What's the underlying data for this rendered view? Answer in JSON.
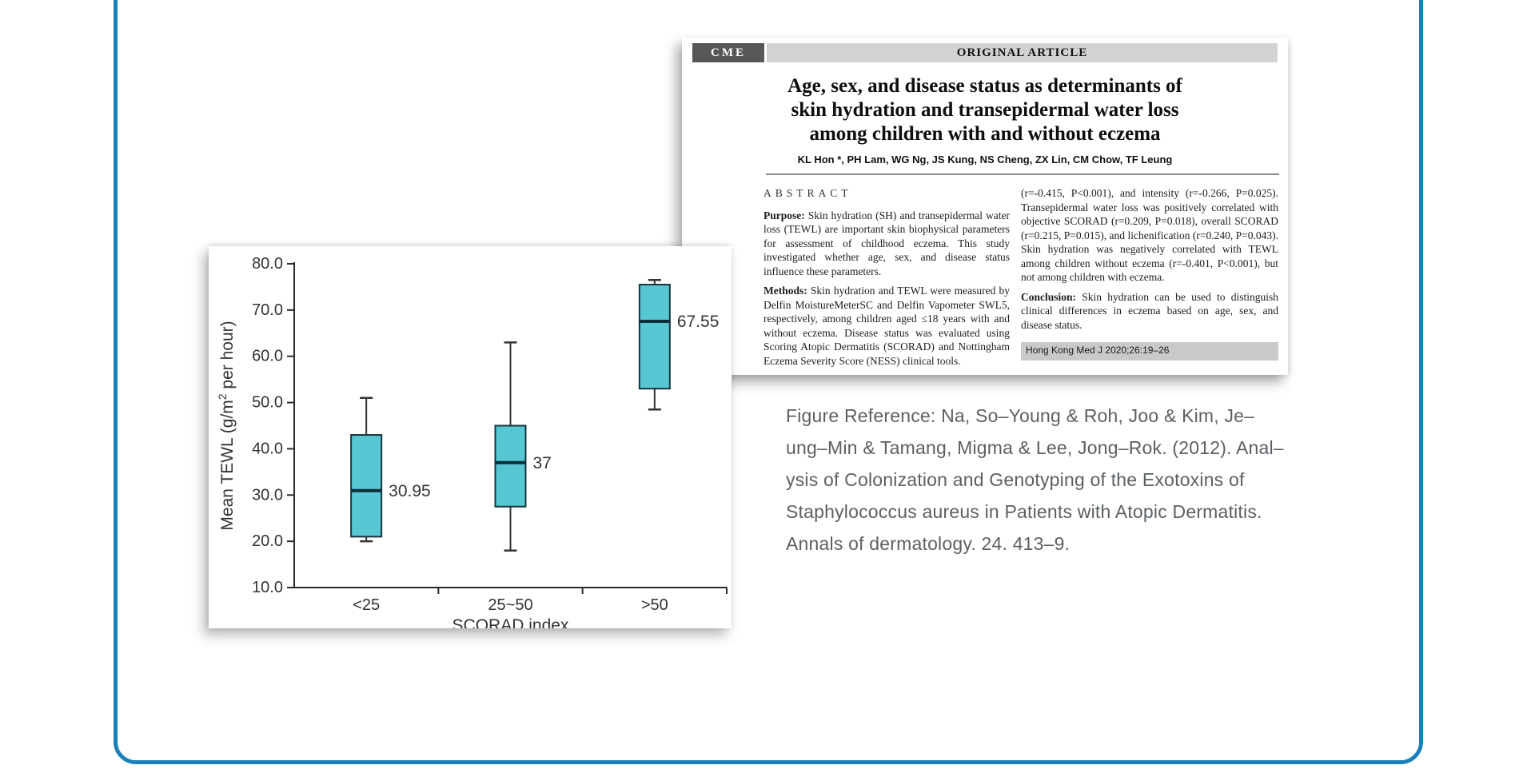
{
  "frame": {
    "border_color": "#1a80b9"
  },
  "paper": {
    "cme_label": "CME",
    "article_type": "ORIGINAL ARTICLE",
    "title_lines": [
      "Age, sex, and disease status as determinants of",
      "skin hydration and transepidermal water loss",
      "among children with and without eczema"
    ],
    "authors": "KL Hon *, PH Lam, WG Ng, JS Kung, NS Cheng, ZX Lin, CM Chow, TF Leung",
    "abstract_heading": "ABSTRACT",
    "left_column": {
      "purpose_label": "Purpose:",
      "purpose_text": "Skin hydration (SH) and transepidermal water loss (TEWL) are important skin biophysical parameters for assessment of childhood eczema. This study investigated whether age, sex, and disease status influence these parameters.",
      "methods_label": "Methods:",
      "methods_text": "Skin hydration and TEWL were measured by Delfin MoistureMeterSC and Delfin Vapometer SWL5, respectively, among children aged ≤18 years with and without eczema. Disease status was evaluated using Scoring Atopic Dermatitis (SCORAD) and Nottingham Eczema Severity Score (NESS) clinical tools."
    },
    "right_column": {
      "results_text": "(r=-0.415, P<0.001), and intensity (r=-0.266, P=0.025). Transepidermal water loss was positively correlated with objective SCORAD (r=0.209, P=0.018), overall SCORAD (r=0.215, P=0.015), and lichenification (r=0.240, P=0.043). Skin hydration was negatively correlated with TEWL among children without eczema (r=-0.401, P<0.001), but not among children with eczema.",
      "conclusion_label": "Conclusion:",
      "conclusion_text": "Skin hydration can be used to distinguish clinical differences in eczema based on age, sex, and disease status.",
      "citation": "Hong Kong Med J 2020;26:19–26"
    }
  },
  "chart_data": {
    "type": "boxplot",
    "title": "",
    "xlabel": "SCORAD index",
    "ylabel": "Mean TEWL (g/m² per hour)",
    "ylabel_parts": [
      "Mean TEWL (g/m",
      "2",
      " per hour)"
    ],
    "ylim": [
      10,
      80
    ],
    "ytick_step": 10,
    "ytick_labels": [
      "10.0",
      "20.0",
      "30.0",
      "40.0",
      "50.0",
      "60.0",
      "70.0",
      "80.0"
    ],
    "categories": [
      "<25",
      "25~50",
      ">50"
    ],
    "boxes": [
      {
        "category": "<25",
        "whisker_low": 20,
        "q1": 21,
        "median": 30.95,
        "q3": 43,
        "whisker_high": 51,
        "label": "30.95"
      },
      {
        "category": "25~50",
        "whisker_low": 18,
        "q1": 27.5,
        "median": 37,
        "q3": 45,
        "whisker_high": 63,
        "label": "37"
      },
      {
        "category": ">50",
        "whisker_low": 48.5,
        "q1": 53,
        "median": 67.55,
        "q3": 75.5,
        "whisker_high": 76.5,
        "label": "67.55"
      }
    ],
    "box_fill": "#57c7d3",
    "box_stroke": "#17333e",
    "median_color": "#0d2f3a",
    "axis_color": "#2b2b2b",
    "legend": "none",
    "grid": false
  },
  "reference": {
    "lines": [
      "Figure Reference: Na, So–Young & Roh, Joo & Kim, Je–",
      "ung–Min & Tamang, Migma & Lee, Jong–Rok. (2012). Anal–",
      "ysis of Colonization and Genotyping of the Exotoxins of",
      "Staphylococcus aureus in Patients with Atopic Dermatitis.",
      "Annals of dermatology. 24. 413–9."
    ]
  }
}
